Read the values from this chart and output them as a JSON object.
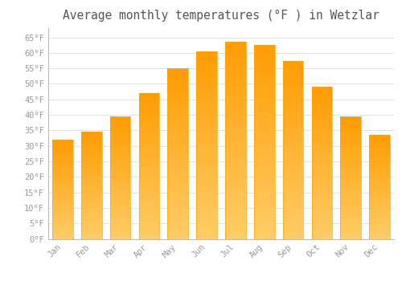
{
  "title": "Average monthly temperatures (°F ) in Wetzlar",
  "months": [
    "Jan",
    "Feb",
    "Mar",
    "Apr",
    "May",
    "Jun",
    "Jul",
    "Aug",
    "Sep",
    "Oct",
    "Nov",
    "Dec"
  ],
  "values": [
    32,
    34.5,
    39.5,
    47,
    55,
    60.5,
    63.5,
    62.5,
    57.5,
    49,
    39.5,
    33.5
  ],
  "bar_color_top": "#FFA500",
  "bar_color_bottom": "#FFCC66",
  "bar_edge_color": "#FFA500",
  "background_color": "#FFFFFF",
  "grid_color": "#DDDDDD",
  "ylim": [
    0,
    68
  ],
  "yticks": [
    0,
    5,
    10,
    15,
    20,
    25,
    30,
    35,
    40,
    45,
    50,
    55,
    60,
    65
  ],
  "tick_label_color": "#999999",
  "title_color": "#555555",
  "title_fontsize": 10.5,
  "tick_fontsize": 7.5
}
